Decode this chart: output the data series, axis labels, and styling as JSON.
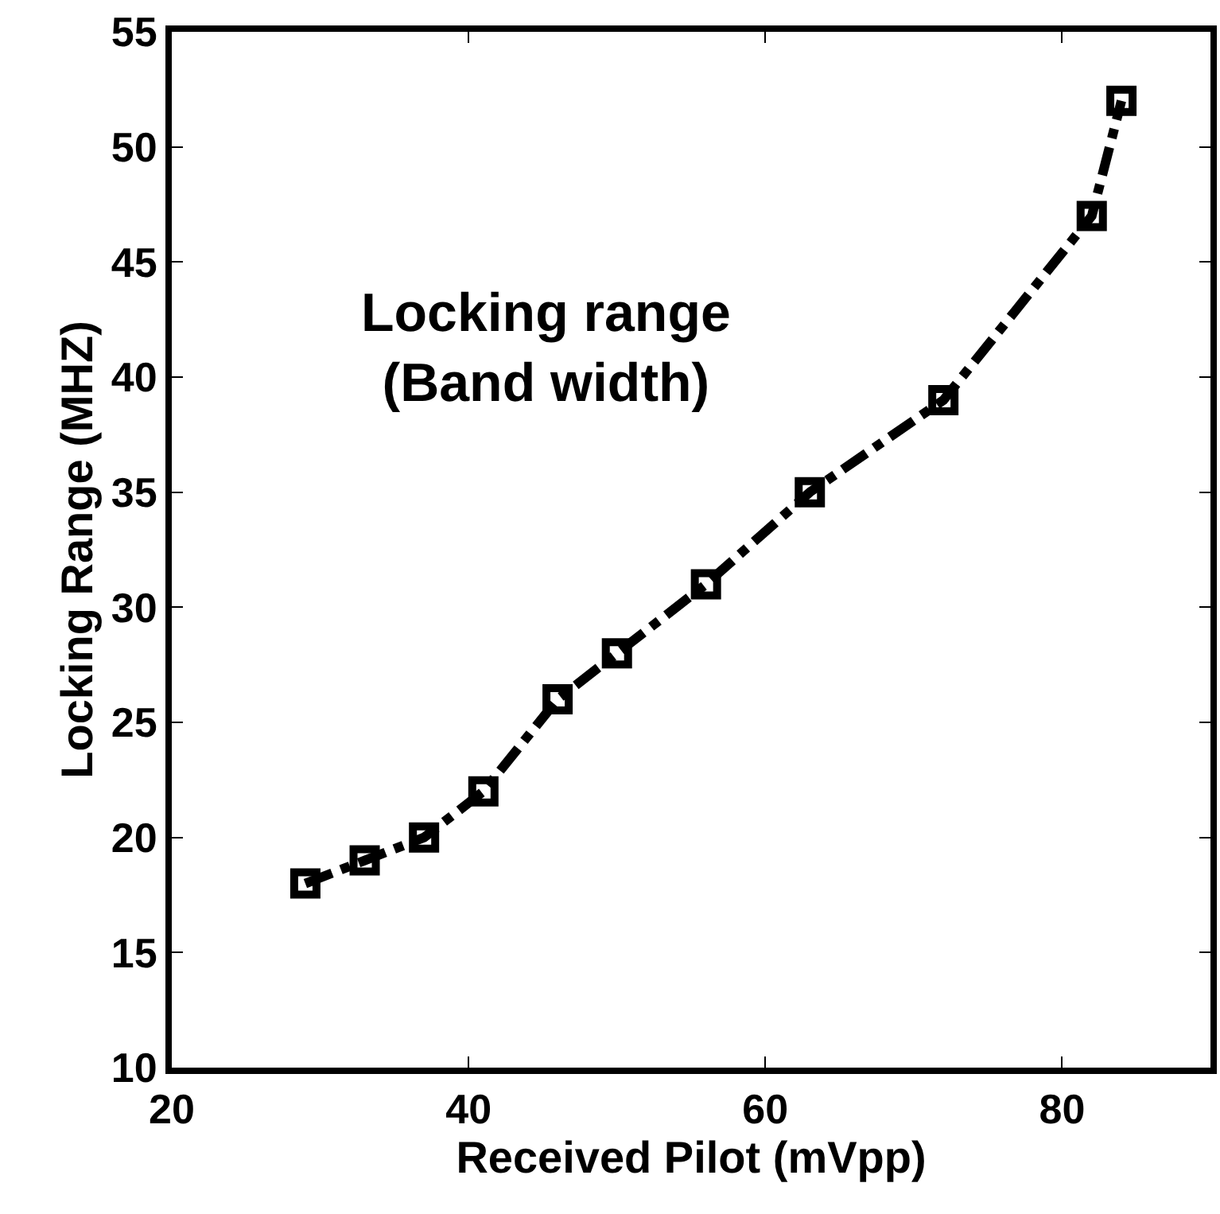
{
  "chart_data": {
    "type": "line",
    "xlabel": "Received Pilot (mVpp)",
    "ylabel": "Locking Range (MHZ)",
    "annotations": [
      "Locking range\n(Band width)"
    ],
    "x": [
      29,
      33,
      37,
      41,
      46,
      50,
      56,
      63,
      72,
      82,
      84
    ],
    "series": [
      {
        "color": "#000000",
        "values": [
          18,
          19,
          20,
          22,
          26,
          28,
          31,
          35,
          39,
          47,
          52
        ]
      }
    ],
    "xlim": [
      20,
      90
    ],
    "xticks": [
      20,
      40,
      60,
      80
    ],
    "ylim": [
      10,
      55
    ],
    "yticks": [
      10,
      15,
      20,
      25,
      30,
      35,
      40,
      45,
      50,
      55
    ],
    "marker": "square",
    "line_style": "dashdot"
  }
}
